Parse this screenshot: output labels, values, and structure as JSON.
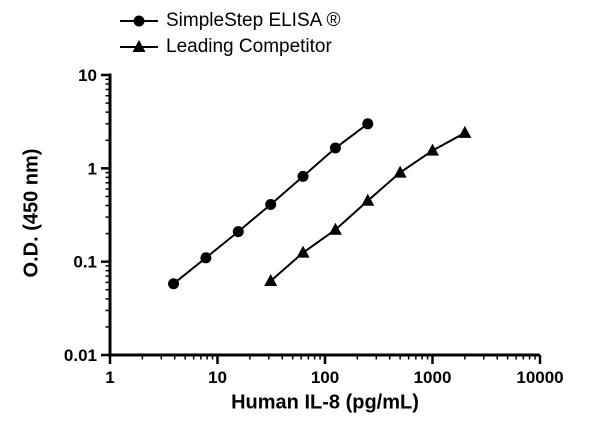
{
  "chart_data": {
    "type": "line",
    "title": "",
    "xlabel": "Human IL-8 (pg/mL)",
    "ylabel": "O.D. (450 nm)",
    "x_scale": "log",
    "y_scale": "log",
    "xlim": [
      1,
      10000
    ],
    "ylim": [
      0.01,
      10
    ],
    "x_ticks": [
      1,
      10,
      100,
      1000,
      10000
    ],
    "x_tick_labels": [
      "1",
      "10",
      "100",
      "1000",
      "10000"
    ],
    "y_ticks": [
      0.01,
      0.1,
      1,
      10
    ],
    "y_tick_labels": [
      "0.01",
      "0.1",
      "1",
      "10"
    ],
    "grid": false,
    "legend_position": "top-left",
    "line_color": "#000000",
    "series": [
      {
        "name": "SimpleStep ELISA ®",
        "marker": "circle",
        "color": "#000000",
        "x": [
          3.9,
          7.8,
          15.6,
          31.25,
          62.5,
          125,
          250
        ],
        "y": [
          0.058,
          0.11,
          0.21,
          0.41,
          0.82,
          1.65,
          3.0
        ]
      },
      {
        "name": "Leading Competitor",
        "marker": "triangle",
        "color": "#000000",
        "x": [
          31.25,
          62.5,
          125,
          250,
          500,
          1000,
          2000
        ],
        "y": [
          0.062,
          0.125,
          0.22,
          0.45,
          0.9,
          1.55,
          2.4
        ]
      }
    ]
  }
}
